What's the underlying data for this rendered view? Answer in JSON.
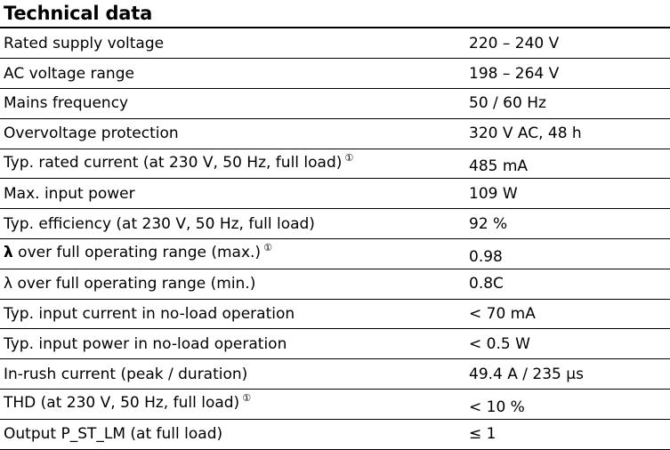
{
  "title": "Technical data",
  "rows": [
    {
      "label": "Rated supply voltage",
      "value": "220 – 240 V"
    },
    {
      "label": "AC voltage range",
      "value": "198 – 264 V"
    },
    {
      "label": "Mains frequency",
      "value": "50 / 60 Hz"
    },
    {
      "label": "Overvoltage protection",
      "value": "320 V AC, 48 h"
    },
    {
      "label": "Typ. rated current (at 230 V, 50 Hz, full load)",
      "note": "①",
      "value": "485 mA"
    },
    {
      "label": "Max. input power",
      "value": "109 W"
    },
    {
      "label": "Typ. efficiency (at 230 V, 50 Hz, full load)",
      "value": "92 %"
    },
    {
      "label_symbol": "λ",
      "label": " over full operating range (max.)",
      "note": "①",
      "value": "0.98"
    },
    {
      "label": "λ over full operating range (min.)",
      "value": "0.8C"
    },
    {
      "label": "Typ. input current in no-load operation",
      "value": "< 70 mA"
    },
    {
      "label": "Typ. input power in no-load operation",
      "value": "< 0.5 W"
    },
    {
      "label": "In-rush current (peak / duration)",
      "value": "49.4 A / 235 µs"
    },
    {
      "label": "THD (at 230 V, 50 Hz, full load)",
      "note": "①",
      "value": "< 10 %"
    },
    {
      "label": "Output P_ST_LM (at full load)",
      "value": "≤ 1"
    }
  ]
}
